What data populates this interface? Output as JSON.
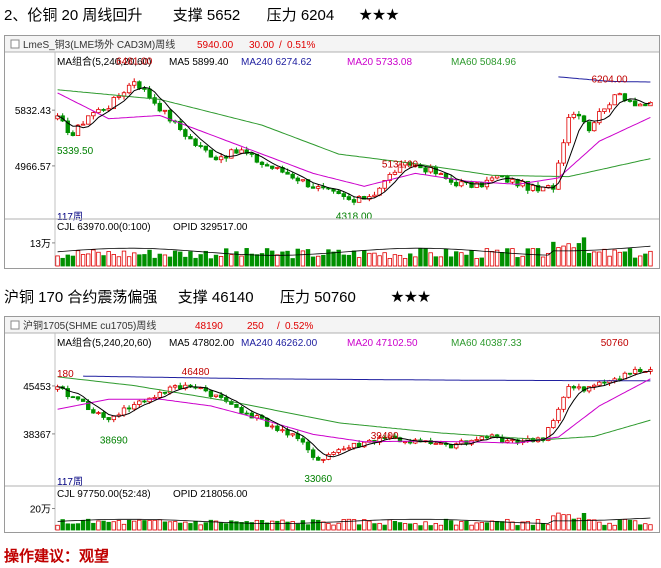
{
  "sections": [
    {
      "heading": {
        "index": "2、",
        "title": "伦铜 20 周线回升",
        "support_label": "支撑",
        "support": "5652",
        "pressure_label": "压力",
        "pressure": "6204",
        "stars": "★★★"
      },
      "toolbar": {
        "symbol": "LmeS_铜3(LME场外 CAD3M)周线",
        "price": "5940.00",
        "change": "30.00",
        "change_pct": "0.51%"
      },
      "legend": {
        "ma_group": "MA组合(5,240,20,60)",
        "ma5": "MA5 5899.40",
        "ma240": "MA240 6274.62",
        "ma20": "MA20 5733.08",
        "ma60": "MA60 5084.96"
      },
      "volume_legend": {
        "cjl": "CJL  63970.00(0:100)",
        "opid": "OPID   329517.00"
      },
      "period_label": "117周",
      "volume_tick": "13万"
    },
    {
      "heading": {
        "index": "",
        "title": "沪铜 170 合约震荡偏强",
        "support_label": "支撑",
        "support": "46140",
        "pressure_label": "压力",
        "pressure": "50760",
        "stars": "★★★"
      },
      "toolbar": {
        "symbol": "沪铜1705(SHME cu1705)周线",
        "price": "48190",
        "change": "250",
        "change_pct": "0.52%"
      },
      "legend": {
        "ma_group": "MA组合(5,240,20,60)",
        "ma5": "MA5 47802.00",
        "ma240": "MA240 46262.00",
        "ma20": "MA20 47102.50",
        "ma60": "MA60 40387.33"
      },
      "volume_legend": {
        "cjl": "CJL  97750.00(52:48)",
        "opid": "OPID   218056.00"
      },
      "period_label": "117周",
      "volume_tick": "20万"
    }
  ],
  "advice": {
    "label": "操作建议：",
    "value": "观望"
  },
  "colors": {
    "up": "#e00000",
    "down": "#009000",
    "ma5": "#000000",
    "ma20": "#cc00cc",
    "ma60": "#2e9a2e",
    "ma240": "#2020a0"
  },
  "chart_data": [
    {
      "type": "candlestick",
      "title": "LmeS_铜3(LME场外 CAD3M)周线",
      "period": "weekly",
      "bars": 117,
      "y_ticks": [
        5832.43,
        4966.57
      ],
      "y_tick_labels": [
        "5832.43",
        "4966.57"
      ],
      "ylim": [
        4250,
        6550
      ],
      "annotations": [
        {
          "label": "6481.00",
          "value": 6481,
          "bar": 15
        },
        {
          "label": "5339.50",
          "value": 5339.5,
          "bar": 2
        },
        {
          "label": "4318.00",
          "value": 4318,
          "bar": 58
        },
        {
          "label": "5131.00",
          "value": 5131,
          "bar": 67
        },
        {
          "label": "6204.00",
          "value": 6204,
          "bar": 108
        }
      ],
      "close_path": [
        [
          0,
          5700
        ],
        [
          3,
          5450
        ],
        [
          6,
          5760
        ],
        [
          10,
          5900
        ],
        [
          15,
          6300
        ],
        [
          18,
          6050
        ],
        [
          22,
          5700
        ],
        [
          27,
          5300
        ],
        [
          31,
          5100
        ],
        [
          36,
          5200
        ],
        [
          40,
          5000
        ],
        [
          45,
          4850
        ],
        [
          50,
          4650
        ],
        [
          55,
          4500
        ],
        [
          58,
          4400
        ],
        [
          62,
          4550
        ],
        [
          66,
          4900
        ],
        [
          69,
          5000
        ],
        [
          73,
          4900
        ],
        [
          77,
          4720
        ],
        [
          82,
          4650
        ],
        [
          86,
          4800
        ],
        [
          90,
          4700
        ],
        [
          94,
          4580
        ],
        [
          97,
          4650
        ],
        [
          100,
          5750
        ],
        [
          102,
          5800
        ],
        [
          104,
          5550
        ],
        [
          107,
          5900
        ],
        [
          110,
          6080
        ],
        [
          113,
          5950
        ],
        [
          116,
          5900
        ]
      ],
      "ma20_path": [
        [
          0,
          6100
        ],
        [
          10,
          5700
        ],
        [
          20,
          5750
        ],
        [
          30,
          5450
        ],
        [
          40,
          5150
        ],
        [
          50,
          4850
        ],
        [
          60,
          4650
        ],
        [
          70,
          4850
        ],
        [
          80,
          4730
        ],
        [
          90,
          4680
        ],
        [
          98,
          4780
        ],
        [
          106,
          5350
        ],
        [
          116,
          5720
        ]
      ],
      "ma60_path": [
        [
          0,
          6150
        ],
        [
          20,
          6000
        ],
        [
          40,
          5600
        ],
        [
          55,
          5150
        ],
        [
          70,
          5000
        ],
        [
          85,
          4820
        ],
        [
          100,
          4800
        ],
        [
          116,
          5080
        ]
      ],
      "ma240_path": [
        [
          98,
          6350
        ],
        [
          108,
          6280
        ],
        [
          116,
          6270
        ]
      ],
      "volume": {
        "tick_label": "13万",
        "tick_value": 130000,
        "ylim": [
          0,
          180000
        ]
      }
    },
    {
      "type": "candlestick",
      "title": "沪铜1705(SHME cu1705)周线",
      "period": "weekly",
      "bars": 117,
      "y_ticks": [
        45453,
        38367
      ],
      "y_tick_labels": [
        "45453",
        "38367"
      ],
      "ylim": [
        32000,
        51500
      ],
      "annotations": [
        {
          "label": "46480",
          "value": 46480,
          "bar": 27
        },
        {
          "label": "180",
          "value": 46180,
          "bar": 0
        },
        {
          "label": "38690",
          "value": 38690,
          "bar": 11
        },
        {
          "label": "39400",
          "value": 39400,
          "bar": 64
        },
        {
          "label": "33060",
          "value": 33060,
          "bar": 51
        },
        {
          "label": "50760",
          "value": 50760,
          "bar": 109
        }
      ],
      "close_path": [
        [
          0,
          45000
        ],
        [
          5,
          43000
        ],
        [
          9,
          40500
        ],
        [
          12,
          41500
        ],
        [
          16,
          43000
        ],
        [
          22,
          45000
        ],
        [
          27,
          45500
        ],
        [
          32,
          43500
        ],
        [
          37,
          41500
        ],
        [
          42,
          39500
        ],
        [
          47,
          37500
        ],
        [
          51,
          34500
        ],
        [
          55,
          36000
        ],
        [
          60,
          37000
        ],
        [
          64,
          38000
        ],
        [
          68,
          37300
        ],
        [
          72,
          37000
        ],
        [
          76,
          36500
        ],
        [
          80,
          37000
        ],
        [
          84,
          38000
        ],
        [
          88,
          37500
        ],
        [
          92,
          37300
        ],
        [
          95,
          37800
        ],
        [
          98,
          42000
        ],
        [
          100,
          45200
        ],
        [
          103,
          44800
        ],
        [
          107,
          46000
        ],
        [
          111,
          47300
        ],
        [
          116,
          47800
        ]
      ],
      "ma20_path": [
        [
          0,
          42000
        ],
        [
          10,
          43500
        ],
        [
          20,
          43500
        ],
        [
          30,
          42500
        ],
        [
          40,
          40500
        ],
        [
          50,
          38300
        ],
        [
          60,
          37200
        ],
        [
          70,
          37300
        ],
        [
          80,
          37200
        ],
        [
          90,
          37000
        ],
        [
          98,
          37900
        ],
        [
          106,
          42500
        ],
        [
          116,
          46500
        ]
      ],
      "ma60_path": [
        [
          0,
          46800
        ],
        [
          15,
          45500
        ],
        [
          35,
          43000
        ],
        [
          55,
          40000
        ],
        [
          75,
          38500
        ],
        [
          95,
          37500
        ],
        [
          105,
          38000
        ],
        [
          116,
          40400
        ]
      ],
      "ma240_path": [
        [
          5,
          46900
        ],
        [
          40,
          46500
        ],
        [
          80,
          46300
        ],
        [
          116,
          46200
        ]
      ],
      "volume": {
        "tick_label": "20万",
        "tick_value": 200000,
        "ylim": [
          0,
          270000
        ]
      }
    }
  ]
}
